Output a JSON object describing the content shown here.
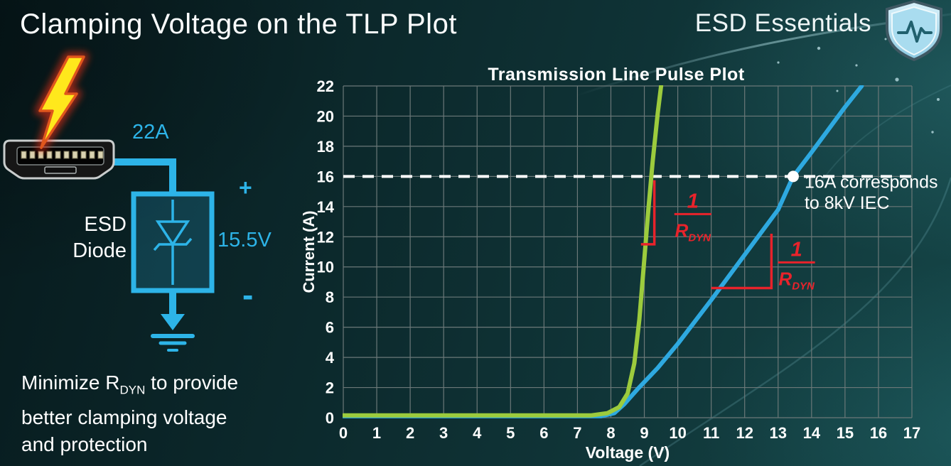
{
  "slide": {
    "title": "Clamping Voltage on the TLP Plot",
    "brand": "ESD Essentials"
  },
  "accents": {
    "cyan": "#2db4e8",
    "green": "#9ccb3d",
    "blue": "#2ea9e0",
    "red": "#e8232b",
    "background_teal": "#0c2a2c",
    "bolt_yellow": "#ffe81c"
  },
  "diagram": {
    "surge_label": "22A",
    "component_line1": "ESD",
    "component_line2": "Diode",
    "plus": "+",
    "voltage_label": "15.5V",
    "minus": "-"
  },
  "note": {
    "line1_pre": "Minimize R",
    "line1_sub": "DYN",
    "line1_post": " to provide",
    "line2": "better clamping voltage",
    "line3": "and protection"
  },
  "chart_data": {
    "type": "line",
    "title": "Transmission Line Pulse Plot",
    "xlabel": "Voltage (V)",
    "ylabel": "Current (A)",
    "xlim": [
      0,
      17
    ],
    "ylim": [
      0,
      22
    ],
    "xtick_step": 1,
    "ytick_step": 2,
    "grid": true,
    "legend": "none",
    "colors": {
      "grid": "#6b7878",
      "text": "#ffffff",
      "annotation_red": "#e8232b"
    },
    "series": [
      {
        "name": "blue-curve-higher-rdyn",
        "color": "#2ea9e0",
        "width": 6,
        "points": [
          [
            0,
            0.1
          ],
          [
            7.7,
            0.1
          ],
          [
            8.1,
            0.3
          ],
          [
            8.4,
            0.9
          ],
          [
            8.8,
            1.9
          ],
          [
            9.4,
            3.3
          ],
          [
            10,
            4.9
          ],
          [
            11,
            7.8
          ],
          [
            12,
            10.8
          ],
          [
            13,
            13.8
          ],
          [
            13.45,
            16
          ],
          [
            14,
            17.6
          ],
          [
            15,
            20.6
          ],
          [
            15.5,
            22
          ]
        ]
      },
      {
        "name": "green-curve-low-rdyn",
        "color": "#9ccb3d",
        "width": 6,
        "points": [
          [
            0,
            0.15
          ],
          [
            7.4,
            0.15
          ],
          [
            7.9,
            0.3
          ],
          [
            8.25,
            0.7
          ],
          [
            8.5,
            1.6
          ],
          [
            8.7,
            3.6
          ],
          [
            8.85,
            6.5
          ],
          [
            9.0,
            10.5
          ],
          [
            9.12,
            13.8
          ],
          [
            9.25,
            17
          ],
          [
            9.4,
            20.2
          ],
          [
            9.5,
            22
          ]
        ]
      }
    ],
    "reference_line": {
      "y": 16,
      "color": "#ffffff",
      "width": 4,
      "dash": [
        16,
        11
      ]
    },
    "marker": {
      "x": 13.45,
      "y": 16,
      "radius": 8,
      "color": "#ffffff"
    },
    "slope_markers": [
      {
        "points": [
          [
            8.9,
            11.5
          ],
          [
            9.3,
            11.5
          ],
          [
            9.3,
            15.75
          ]
        ],
        "frac_center": [
          10.45,
          13.5
        ]
      },
      {
        "points": [
          [
            11.0,
            8.6
          ],
          [
            12.8,
            8.6
          ],
          [
            12.8,
            12.2
          ]
        ],
        "frac_center": [
          13.55,
          10.3
        ]
      }
    ],
    "frac": {
      "numerator": "1",
      "denominator_base": "R",
      "denominator_sub": "DYN"
    },
    "annotations": {
      "iec_note": {
        "x": 13.79,
        "line_y": [
          15.25,
          13.85
        ],
        "lines": [
          "16A corresponds",
          "to 8kV IEC"
        ],
        "color": "#ffffff"
      }
    }
  }
}
